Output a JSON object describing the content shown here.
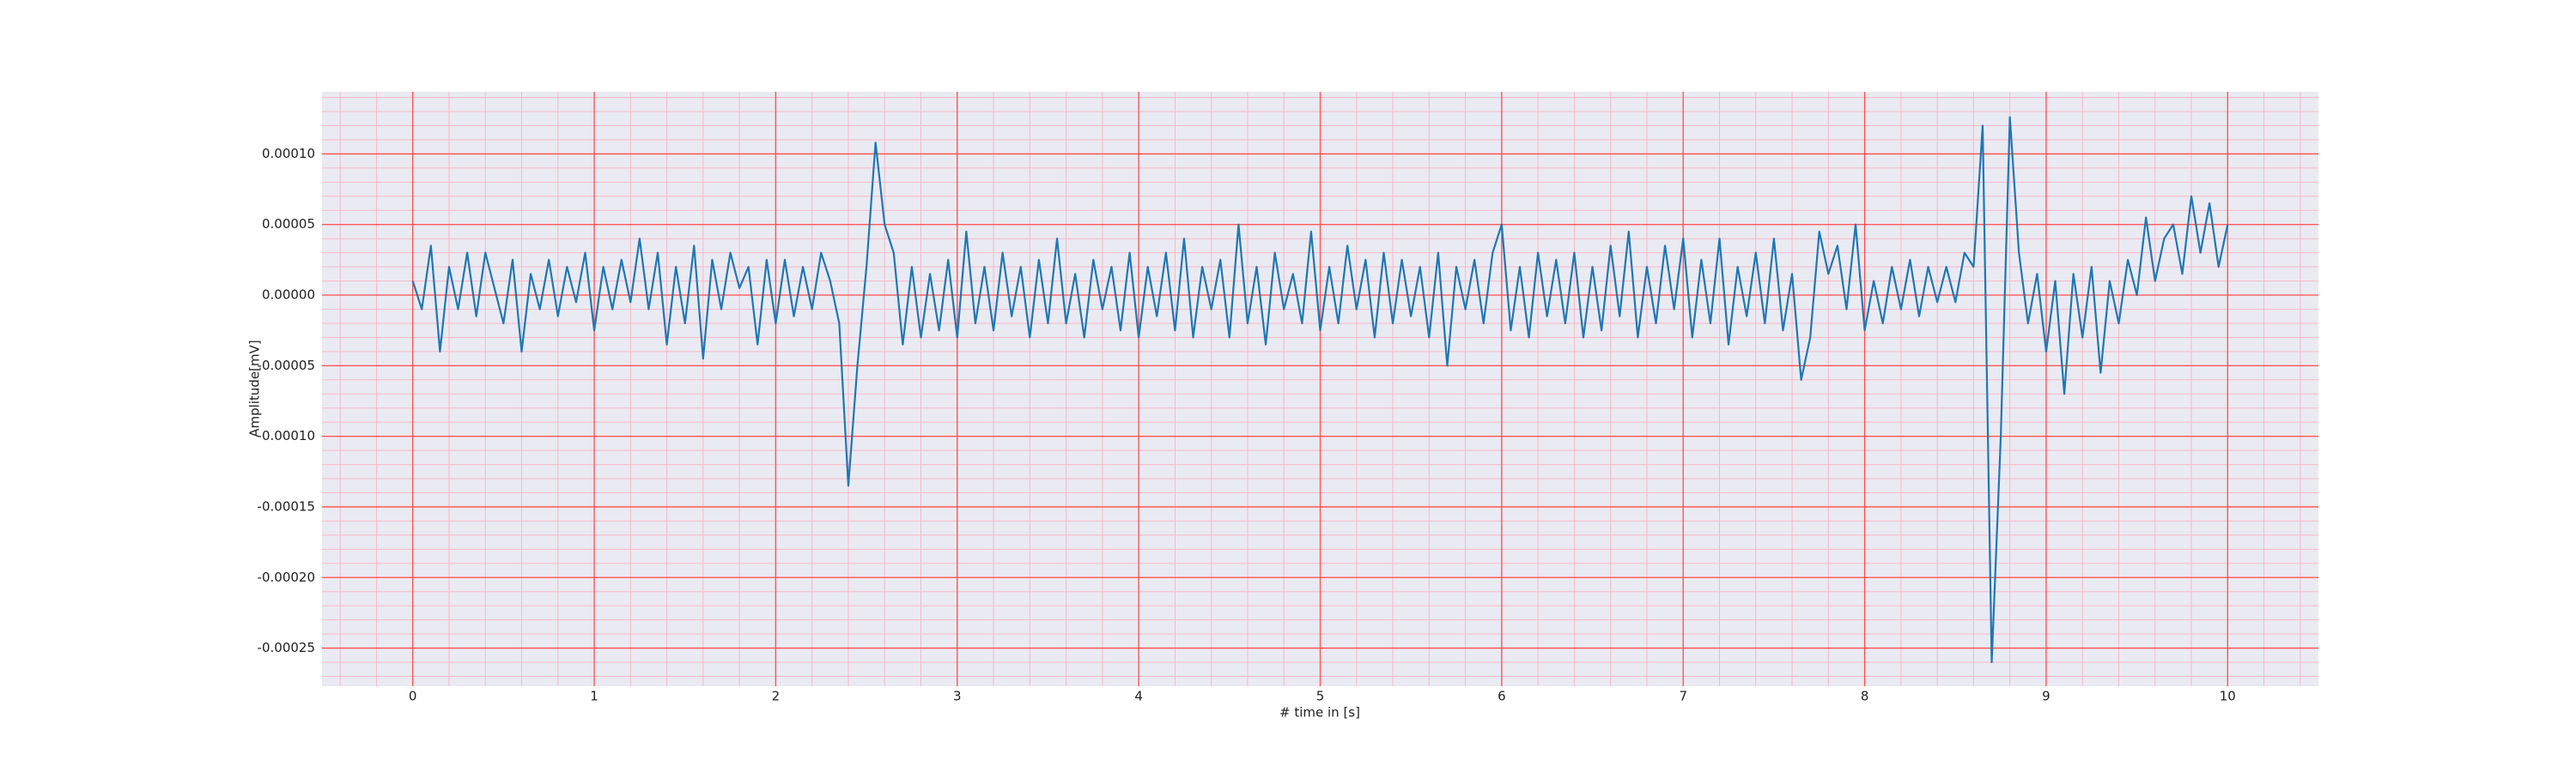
{
  "chart_data": {
    "type": "line",
    "xlabel": "# time in [s]",
    "ylabel": "Amplitude[mV]",
    "xlim": [
      -0.5,
      10.5
    ],
    "ylim": [
      -0.000277,
      0.000144
    ],
    "xticks": [
      0,
      1,
      2,
      3,
      4,
      5,
      6,
      7,
      8,
      9,
      10
    ],
    "yticks": [
      {
        "value": 0.0001,
        "label": "0.00010"
      },
      {
        "value": 5e-05,
        "label": "0.00005"
      },
      {
        "value": 0,
        "label": "0.00000"
      },
      {
        "value": -5e-05,
        "label": "-0.00005"
      },
      {
        "value": -0.0001,
        "label": "-0.00010"
      },
      {
        "value": -0.00015,
        "label": "-0.00015"
      },
      {
        "value": -0.0002,
        "label": "-0.00020"
      },
      {
        "value": -0.00025,
        "label": "-0.00025"
      }
    ],
    "grid": true,
    "grid_color": "#ff4d4d",
    "minor_grid": {
      "x_step": 0.2,
      "y_step": 1e-05,
      "color": "#f7b8c8"
    },
    "background": "#eaeaf2",
    "x": [
      0,
      0.05,
      0.1,
      0.15,
      0.2,
      0.25,
      0.3,
      0.35,
      0.4,
      0.45,
      0.5,
      0.55,
      0.6,
      0.65,
      0.7,
      0.75,
      0.8,
      0.85,
      0.9,
      0.95,
      1,
      1.05,
      1.1,
      1.15,
      1.2,
      1.25,
      1.3,
      1.35,
      1.4,
      1.45,
      1.5,
      1.55,
      1.6,
      1.65,
      1.7,
      1.75,
      1.8,
      1.85,
      1.9,
      1.95,
      2,
      2.05,
      2.1,
      2.15,
      2.2,
      2.25,
      2.3,
      2.35,
      2.4,
      2.45,
      2.5,
      2.55,
      2.6,
      2.65,
      2.7,
      2.75,
      2.8,
      2.85,
      2.9,
      2.95,
      3,
      3.05,
      3.1,
      3.15,
      3.2,
      3.25,
      3.3,
      3.35,
      3.4,
      3.45,
      3.5,
      3.55,
      3.6,
      3.65,
      3.7,
      3.75,
      3.8,
      3.85,
      3.9,
      3.95,
      4,
      4.05,
      4.1,
      4.15,
      4.2,
      4.25,
      4.3,
      4.35,
      4.4,
      4.45,
      4.5,
      4.55,
      4.6,
      4.65,
      4.7,
      4.75,
      4.8,
      4.85,
      4.9,
      4.95,
      5,
      5.05,
      5.1,
      5.15,
      5.2,
      5.25,
      5.3,
      5.35,
      5.4,
      5.45,
      5.5,
      5.55,
      5.6,
      5.65,
      5.7,
      5.75,
      5.8,
      5.85,
      5.9,
      5.95,
      6,
      6.05,
      6.1,
      6.15,
      6.2,
      6.25,
      6.3,
      6.35,
      6.4,
      6.45,
      6.5,
      6.55,
      6.6,
      6.65,
      6.7,
      6.75,
      6.8,
      6.85,
      6.9,
      6.95,
      7,
      7.05,
      7.1,
      7.15,
      7.2,
      7.25,
      7.3,
      7.35,
      7.4,
      7.45,
      7.5,
      7.55,
      7.6,
      7.65,
      7.7,
      7.75,
      7.8,
      7.85,
      7.9,
      7.95,
      8,
      8.05,
      8.1,
      8.15,
      8.2,
      8.25,
      8.3,
      8.35,
      8.4,
      8.45,
      8.5,
      8.55,
      8.6,
      8.65,
      8.7,
      8.75,
      8.8,
      8.85,
      8.9,
      8.95,
      9,
      9.05,
      9.1,
      9.15,
      9.2,
      9.25,
      9.3,
      9.35,
      9.4,
      9.45,
      9.5,
      9.55,
      9.6,
      9.65,
      9.7,
      9.75,
      9.8,
      9.85,
      9.9,
      9.95,
      10
    ],
    "series": [
      {
        "color": "#1f77b4",
        "values": [
          1e-05,
          -1e-05,
          3.5e-05,
          -4e-05,
          2e-05,
          -1e-05,
          3e-05,
          -1.5e-05,
          3e-05,
          5e-06,
          -2e-05,
          2.5e-05,
          -4e-05,
          1.5e-05,
          -1e-05,
          2.5e-05,
          -1.5e-05,
          2e-05,
          -5e-06,
          3e-05,
          -2.5e-05,
          2e-05,
          -1e-05,
          2.5e-05,
          -5e-06,
          4e-05,
          -1e-05,
          3e-05,
          -3.5e-05,
          2e-05,
          -2e-05,
          3.5e-05,
          -4.5e-05,
          2.5e-05,
          -1e-05,
          3e-05,
          5e-06,
          2e-05,
          -3.5e-05,
          2.5e-05,
          -2e-05,
          2.5e-05,
          -1.5e-05,
          2e-05,
          -1e-05,
          3e-05,
          1e-05,
          -2e-05,
          -0.000135,
          -5e-05,
          2e-05,
          0.000108,
          5e-05,
          3e-05,
          -3.5e-05,
          2e-05,
          -3e-05,
          1.5e-05,
          -2.5e-05,
          2.5e-05,
          -3e-05,
          4.5e-05,
          -2e-05,
          2e-05,
          -2.5e-05,
          3e-05,
          -1.5e-05,
          2e-05,
          -3e-05,
          2.5e-05,
          -2e-05,
          4e-05,
          -2e-05,
          1.5e-05,
          -3e-05,
          2.5e-05,
          -1e-05,
          2e-05,
          -2.5e-05,
          3e-05,
          -3e-05,
          2e-05,
          -1.5e-05,
          3e-05,
          -2.5e-05,
          4e-05,
          -3e-05,
          2e-05,
          -1e-05,
          2.5e-05,
          -3e-05,
          5e-05,
          -2e-05,
          2e-05,
          -3.5e-05,
          3e-05,
          -1e-05,
          1.5e-05,
          -2e-05,
          4.5e-05,
          -2.5e-05,
          2e-05,
          -2e-05,
          3.5e-05,
          -1e-05,
          2.5e-05,
          -3e-05,
          3e-05,
          -2e-05,
          2.5e-05,
          -1.5e-05,
          2e-05,
          -3e-05,
          3e-05,
          -5e-05,
          2e-05,
          -1e-05,
          2.5e-05,
          -2e-05,
          3e-05,
          5e-05,
          -2.5e-05,
          2e-05,
          -3e-05,
          3e-05,
          -1.5e-05,
          2.5e-05,
          -2e-05,
          3e-05,
          -3e-05,
          2e-05,
          -2.5e-05,
          3.5e-05,
          -1.5e-05,
          4.5e-05,
          -3e-05,
          2e-05,
          -2e-05,
          3.5e-05,
          -1e-05,
          4e-05,
          -3e-05,
          2.5e-05,
          -2e-05,
          4e-05,
          -3.5e-05,
          2e-05,
          -1.5e-05,
          3e-05,
          -2e-05,
          4e-05,
          -2.5e-05,
          1.5e-05,
          -6e-05,
          -3e-05,
          4.5e-05,
          1.5e-05,
          3.5e-05,
          -1e-05,
          5e-05,
          -2.5e-05,
          1e-05,
          -2e-05,
          2e-05,
          -1e-05,
          2.5e-05,
          -1.5e-05,
          2e-05,
          -5e-06,
          2e-05,
          -5e-06,
          3e-05,
          2e-05,
          0.00012,
          -0.00026,
          -0.0001,
          0.000126,
          3e-05,
          -2e-05,
          1.5e-05,
          -4e-05,
          1e-05,
          -7e-05,
          1.5e-05,
          -3e-05,
          2e-05,
          -5.5e-05,
          1e-05,
          -2e-05,
          2.5e-05,
          0,
          5.5e-05,
          1e-05,
          4e-05,
          5e-05,
          1.5e-05,
          7e-05,
          3e-05,
          6.5e-05,
          2e-05,
          5e-05
        ]
      }
    ]
  }
}
